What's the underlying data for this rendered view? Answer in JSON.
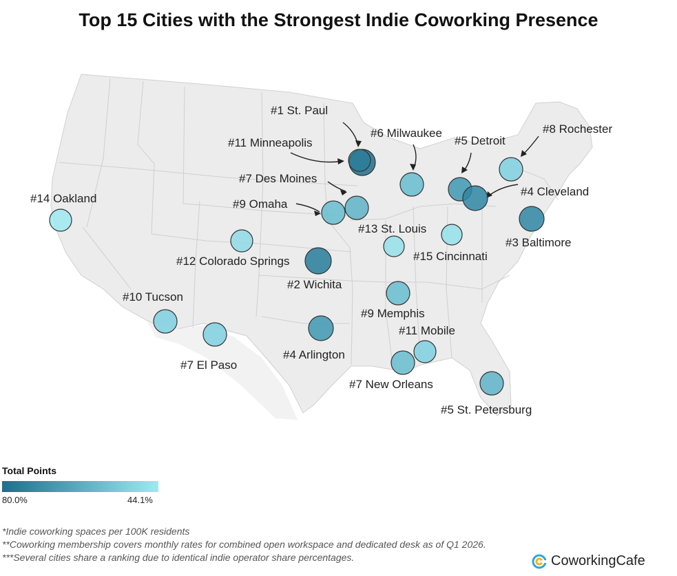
{
  "title": "Top 15 Cities with the Strongest Indie Coworking Presence",
  "legend": {
    "title": "Total Points",
    "min_label": "80.0%",
    "max_label": "44.1%",
    "dark_color": "#1f6e8c",
    "light_color": "#9ee9f1"
  },
  "cities": [
    {
      "label": "#1 St. Paul"
    },
    {
      "label": "#11 Minneapolis"
    },
    {
      "label": "#6 Milwaukee"
    },
    {
      "label": "#5 Detroit"
    },
    {
      "label": "#8 Rochester"
    },
    {
      "label": "#7 Des Moines"
    },
    {
      "label": "#4 Cleveland"
    },
    {
      "label": "#14 Oakland"
    },
    {
      "label": "#9 Omaha"
    },
    {
      "label": "#13 St. Louis"
    },
    {
      "label": "#3 Baltimore"
    },
    {
      "label": "#12 Colorado Springs"
    },
    {
      "label": "#15 Cincinnati"
    },
    {
      "label": "#2 Wichita"
    },
    {
      "label": "#10 Tucson"
    },
    {
      "label": "#9 Memphis"
    },
    {
      "label": "#11 Mobile"
    },
    {
      "label": "#4 Arlington"
    },
    {
      "label": "#7 El Paso"
    },
    {
      "label": "#7 New Orleans"
    },
    {
      "label": "#5 St. Petersburg"
    }
  ],
  "footnotes": [
    "*Indie coworking spaces per 100K residents",
    "**Coworking membership covers monthly rates for combined open workspace and dedicated desk as of Q1 2026.",
    "***Several cities share a ranking due to identical indie operator share percentages."
  ],
  "brand": {
    "name": "CoworkingCafe",
    "icon": "coworkingcafe-logo-icon"
  }
}
